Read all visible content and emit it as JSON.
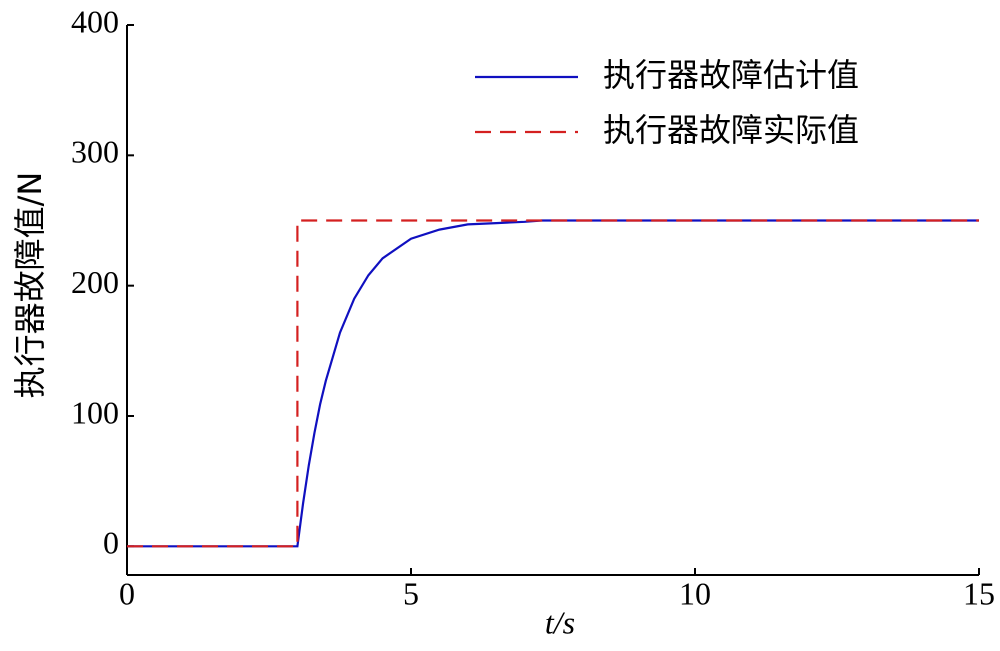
{
  "chart_data": {
    "type": "line",
    "x_label": "t/s",
    "y_label": "执行器故障值/N",
    "xlim": [
      0,
      15
    ],
    "ylim": [
      -22,
      400
    ],
    "xticks": [
      0,
      5,
      10,
      15
    ],
    "yticks": [
      0,
      100,
      200,
      300,
      400
    ],
    "legend": "upper right",
    "series": [
      {
        "name": "执行器故障估计值",
        "color": "#1010c0",
        "dash": "solid",
        "x": [
          0,
          3,
          3.1,
          3.2,
          3.3,
          3.4,
          3.5,
          3.75,
          4,
          4.25,
          4.5,
          5,
          5.5,
          6,
          6.5,
          7,
          7.3,
          15
        ],
        "values": [
          0,
          0,
          33,
          62,
          87,
          109,
          127,
          164,
          190,
          208,
          221,
          236,
          243,
          247,
          248,
          249,
          250,
          250
        ]
      },
      {
        "name": "执行器故障实际值",
        "color": "#d42020",
        "dash": "dashed",
        "x": [
          0,
          3,
          3,
          15
        ],
        "values": [
          0,
          0,
          250,
          250
        ]
      }
    ]
  }
}
